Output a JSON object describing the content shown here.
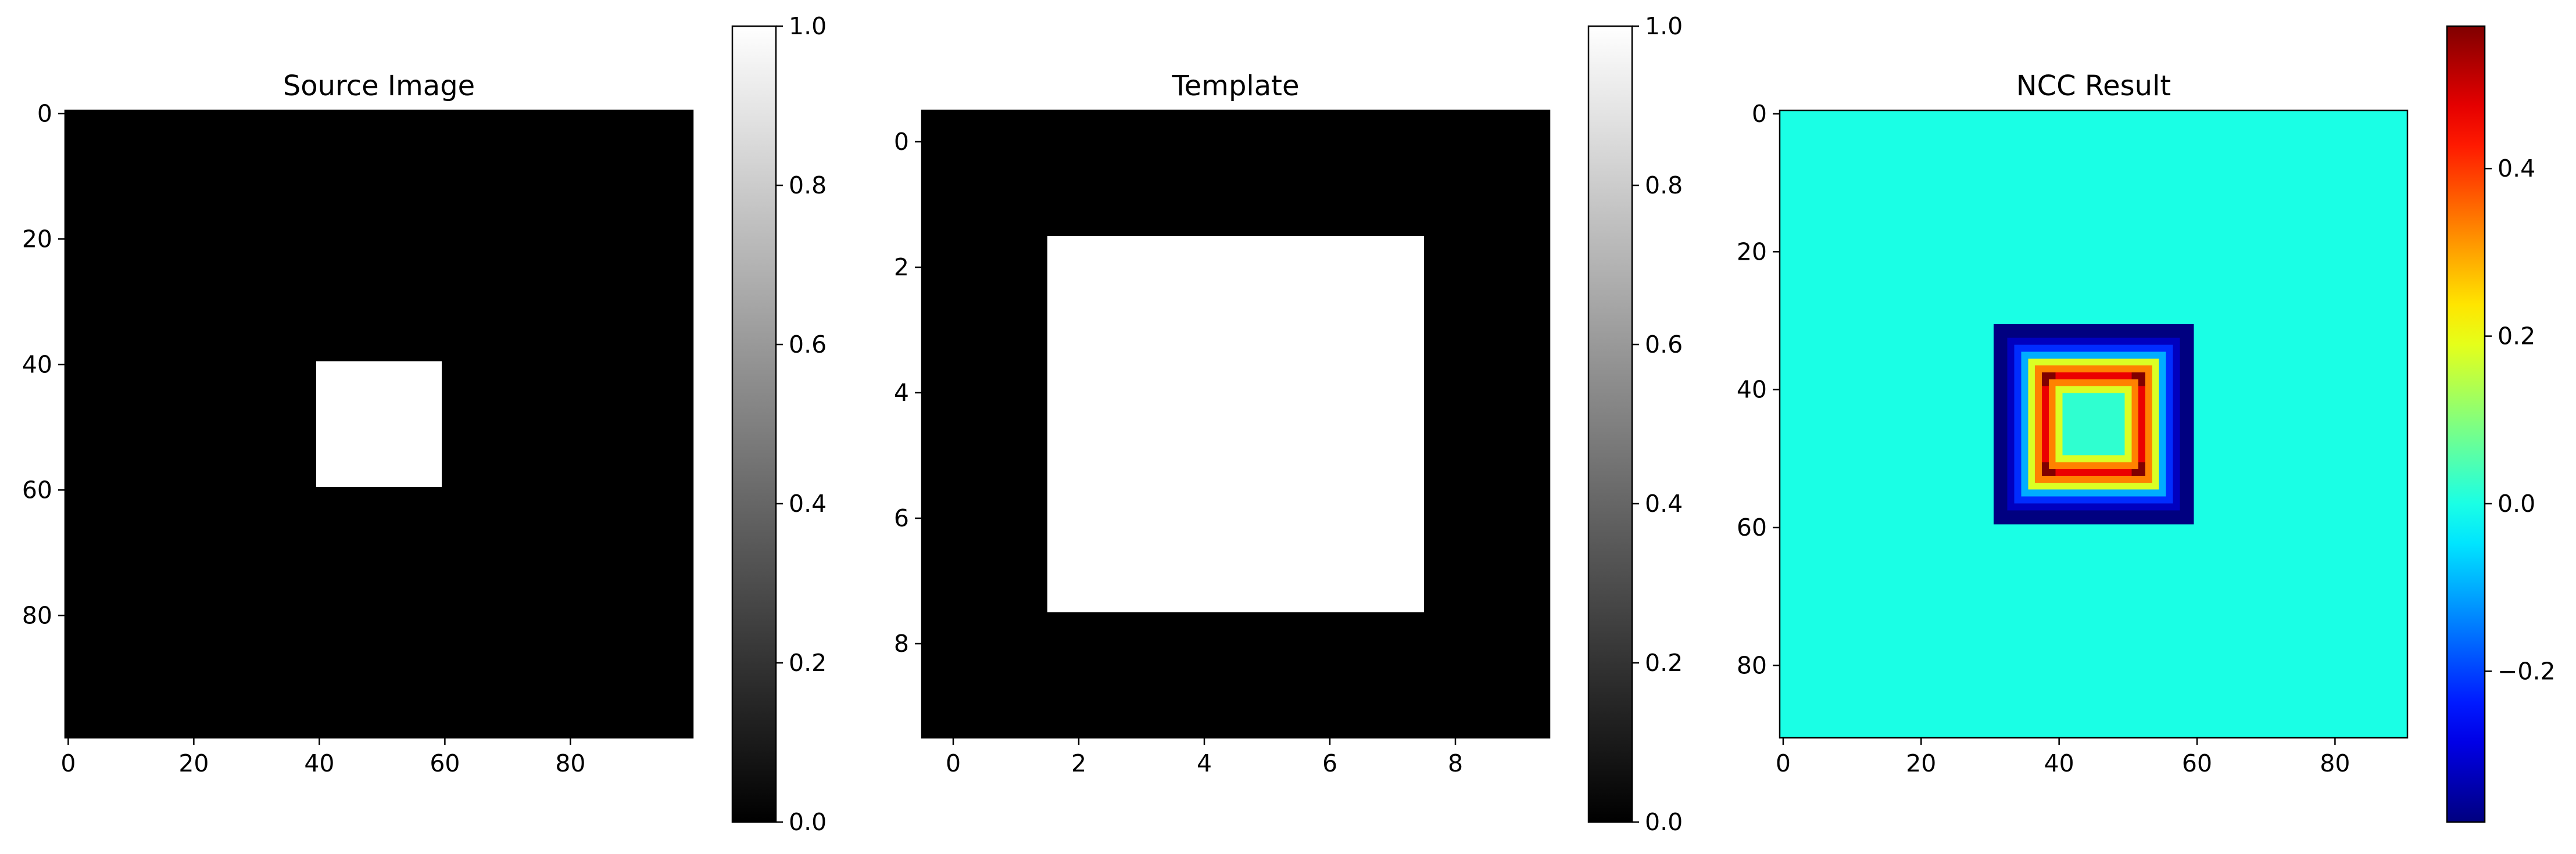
{
  "chart_data": [
    {
      "type": "heatmap",
      "title": "Source Image",
      "colormap": "gray",
      "size": [
        100,
        100
      ],
      "xlim": [
        -0.5,
        99.5
      ],
      "ylim": [
        99.5,
        -0.5
      ],
      "xticks": [
        0,
        20,
        40,
        60,
        80
      ],
      "yticks": [
        0,
        20,
        40,
        60,
        80
      ],
      "background_value": 0.0,
      "regions": [
        {
          "x_range": [
            40,
            59
          ],
          "y_range": [
            40,
            59
          ],
          "value": 1.0
        }
      ],
      "colorbar": {
        "range": [
          0.0,
          1.0
        ],
        "ticks": [
          "0.0",
          "0.2",
          "0.4",
          "0.6",
          "0.8",
          "1.0"
        ]
      }
    },
    {
      "type": "heatmap",
      "title": "Template",
      "colormap": "gray",
      "size": [
        10,
        10
      ],
      "xlim": [
        -0.5,
        9.5
      ],
      "ylim": [
        9.5,
        -0.5
      ],
      "xticks": [
        0,
        2,
        4,
        6,
        8
      ],
      "yticks": [
        0,
        2,
        4,
        6,
        8
      ],
      "background_value": 0.0,
      "regions": [
        {
          "x_range": [
            2,
            7
          ],
          "y_range": [
            2,
            7
          ],
          "value": 1.0
        }
      ],
      "colorbar": {
        "range": [
          0.0,
          1.0
        ],
        "ticks": [
          "0.0",
          "0.2",
          "0.4",
          "0.6",
          "0.8",
          "1.0"
        ]
      }
    },
    {
      "type": "heatmap",
      "title": "NCC Result",
      "colormap": "jet",
      "size": [
        91,
        91
      ],
      "xlim": [
        -0.5,
        90.5
      ],
      "ylim": [
        90.5,
        -0.5
      ],
      "xticks": [
        0,
        20,
        40,
        60,
        80
      ],
      "yticks": [
        0,
        20,
        40,
        60,
        80
      ],
      "background_value": 0.0,
      "vmin": -0.38,
      "vmax": 0.57,
      "feature": {
        "description": "square frame of negative correlation with a bright inner square ring",
        "outer_extent": [
          31,
          59
        ],
        "inner_ring": [
          38,
          52
        ],
        "peak_value": 0.57,
        "min_value": -0.38
      },
      "colorbar": {
        "range": [
          -0.38,
          0.57
        ],
        "ticks": [
          "−0.2",
          "0.0",
          "0.2",
          "0.4"
        ],
        "tick_values": [
          -0.2,
          0.0,
          0.2,
          0.4
        ]
      }
    }
  ]
}
